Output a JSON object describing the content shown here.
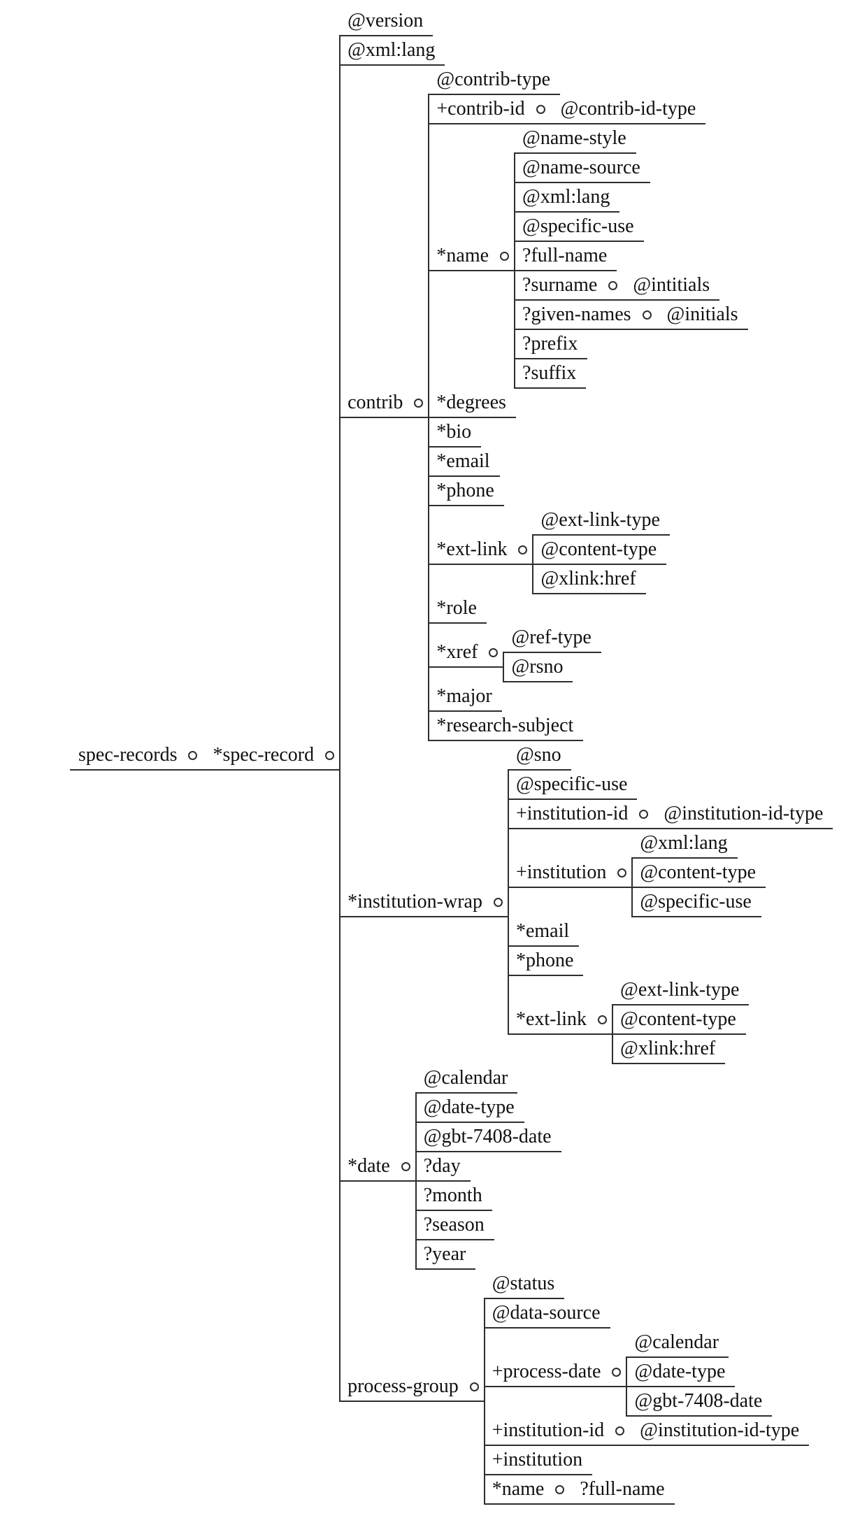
{
  "diagram_type": "xml-schema-tree",
  "colors": {
    "background": "#ffffff",
    "text": "#101010",
    "line": "#2e2e2e"
  },
  "icons": {
    "ring-connector-icon": "small open circle (∘) between a parent node and its children"
  },
  "legend_prefixes": {
    "@": "attribute",
    "*": "repeatable element",
    "+": "one-or-more element",
    "?": "optional element"
  },
  "tree": {
    "label": "spec-records",
    "children": [
      {
        "label": "*spec-record",
        "children": [
          {
            "label": "@version"
          },
          {
            "label": "@xml:lang"
          },
          {
            "label": "contrib",
            "children": [
              {
                "label": "@contrib-type"
              },
              {
                "label": "+contrib-id",
                "children": [
                  {
                    "label": "@contrib-id-type"
                  }
                ]
              },
              {
                "label": "*name",
                "children": [
                  {
                    "label": "@name-style"
                  },
                  {
                    "label": "@name-source"
                  },
                  {
                    "label": "@xml:lang"
                  },
                  {
                    "label": "@specific-use"
                  },
                  {
                    "label": "?full-name"
                  },
                  {
                    "label": "?surname",
                    "children": [
                      {
                        "label": "@intitials"
                      }
                    ]
                  },
                  {
                    "label": "?given-names",
                    "children": [
                      {
                        "label": "@initials"
                      }
                    ]
                  },
                  {
                    "label": "?prefix"
                  },
                  {
                    "label": "?suffix"
                  }
                ]
              },
              {
                "label": "*degrees"
              },
              {
                "label": "*bio"
              },
              {
                "label": "*email"
              },
              {
                "label": "*phone"
              },
              {
                "label": "*ext-link",
                "children": [
                  {
                    "label": "@ext-link-type"
                  },
                  {
                    "label": "@content-type"
                  },
                  {
                    "label": "@xlink:href"
                  }
                ]
              },
              {
                "label": "*role"
              },
              {
                "label": "*xref",
                "children": [
                  {
                    "label": "@ref-type"
                  },
                  {
                    "label": "@rsno"
                  }
                ]
              },
              {
                "label": "*major"
              },
              {
                "label": "*research-subject"
              }
            ]
          },
          {
            "label": "*institution-wrap",
            "children": [
              {
                "label": "@sno"
              },
              {
                "label": "@specific-use"
              },
              {
                "label": "+institution-id",
                "children": [
                  {
                    "label": "@institution-id-type"
                  }
                ]
              },
              {
                "label": "+institution",
                "children": [
                  {
                    "label": "@xml:lang"
                  },
                  {
                    "label": "@content-type"
                  },
                  {
                    "label": "@specific-use"
                  }
                ]
              },
              {
                "label": "*email"
              },
              {
                "label": "*phone"
              },
              {
                "label": "*ext-link",
                "children": [
                  {
                    "label": "@ext-link-type"
                  },
                  {
                    "label": "@content-type"
                  },
                  {
                    "label": "@xlink:href"
                  }
                ]
              }
            ]
          },
          {
            "label": "*date",
            "children": [
              {
                "label": "@calendar"
              },
              {
                "label": "@date-type"
              },
              {
                "label": "@gbt-7408-date"
              },
              {
                "label": "?day"
              },
              {
                "label": "?month"
              },
              {
                "label": "?season"
              },
              {
                "label": "?year"
              }
            ]
          },
          {
            "label": "process-group",
            "children": [
              {
                "label": "@status"
              },
              {
                "label": "@data-source"
              },
              {
                "label": "+process-date",
                "children": [
                  {
                    "label": "@calendar"
                  },
                  {
                    "label": "@date-type"
                  },
                  {
                    "label": "@gbt-7408-date"
                  }
                ]
              },
              {
                "label": "+institution-id",
                "children": [
                  {
                    "label": "@institution-id-type"
                  }
                ]
              },
              {
                "label": "+institution"
              },
              {
                "label": "*name",
                "children": [
                  {
                    "label": "?full-name"
                  }
                ]
              }
            ]
          }
        ]
      }
    ]
  }
}
